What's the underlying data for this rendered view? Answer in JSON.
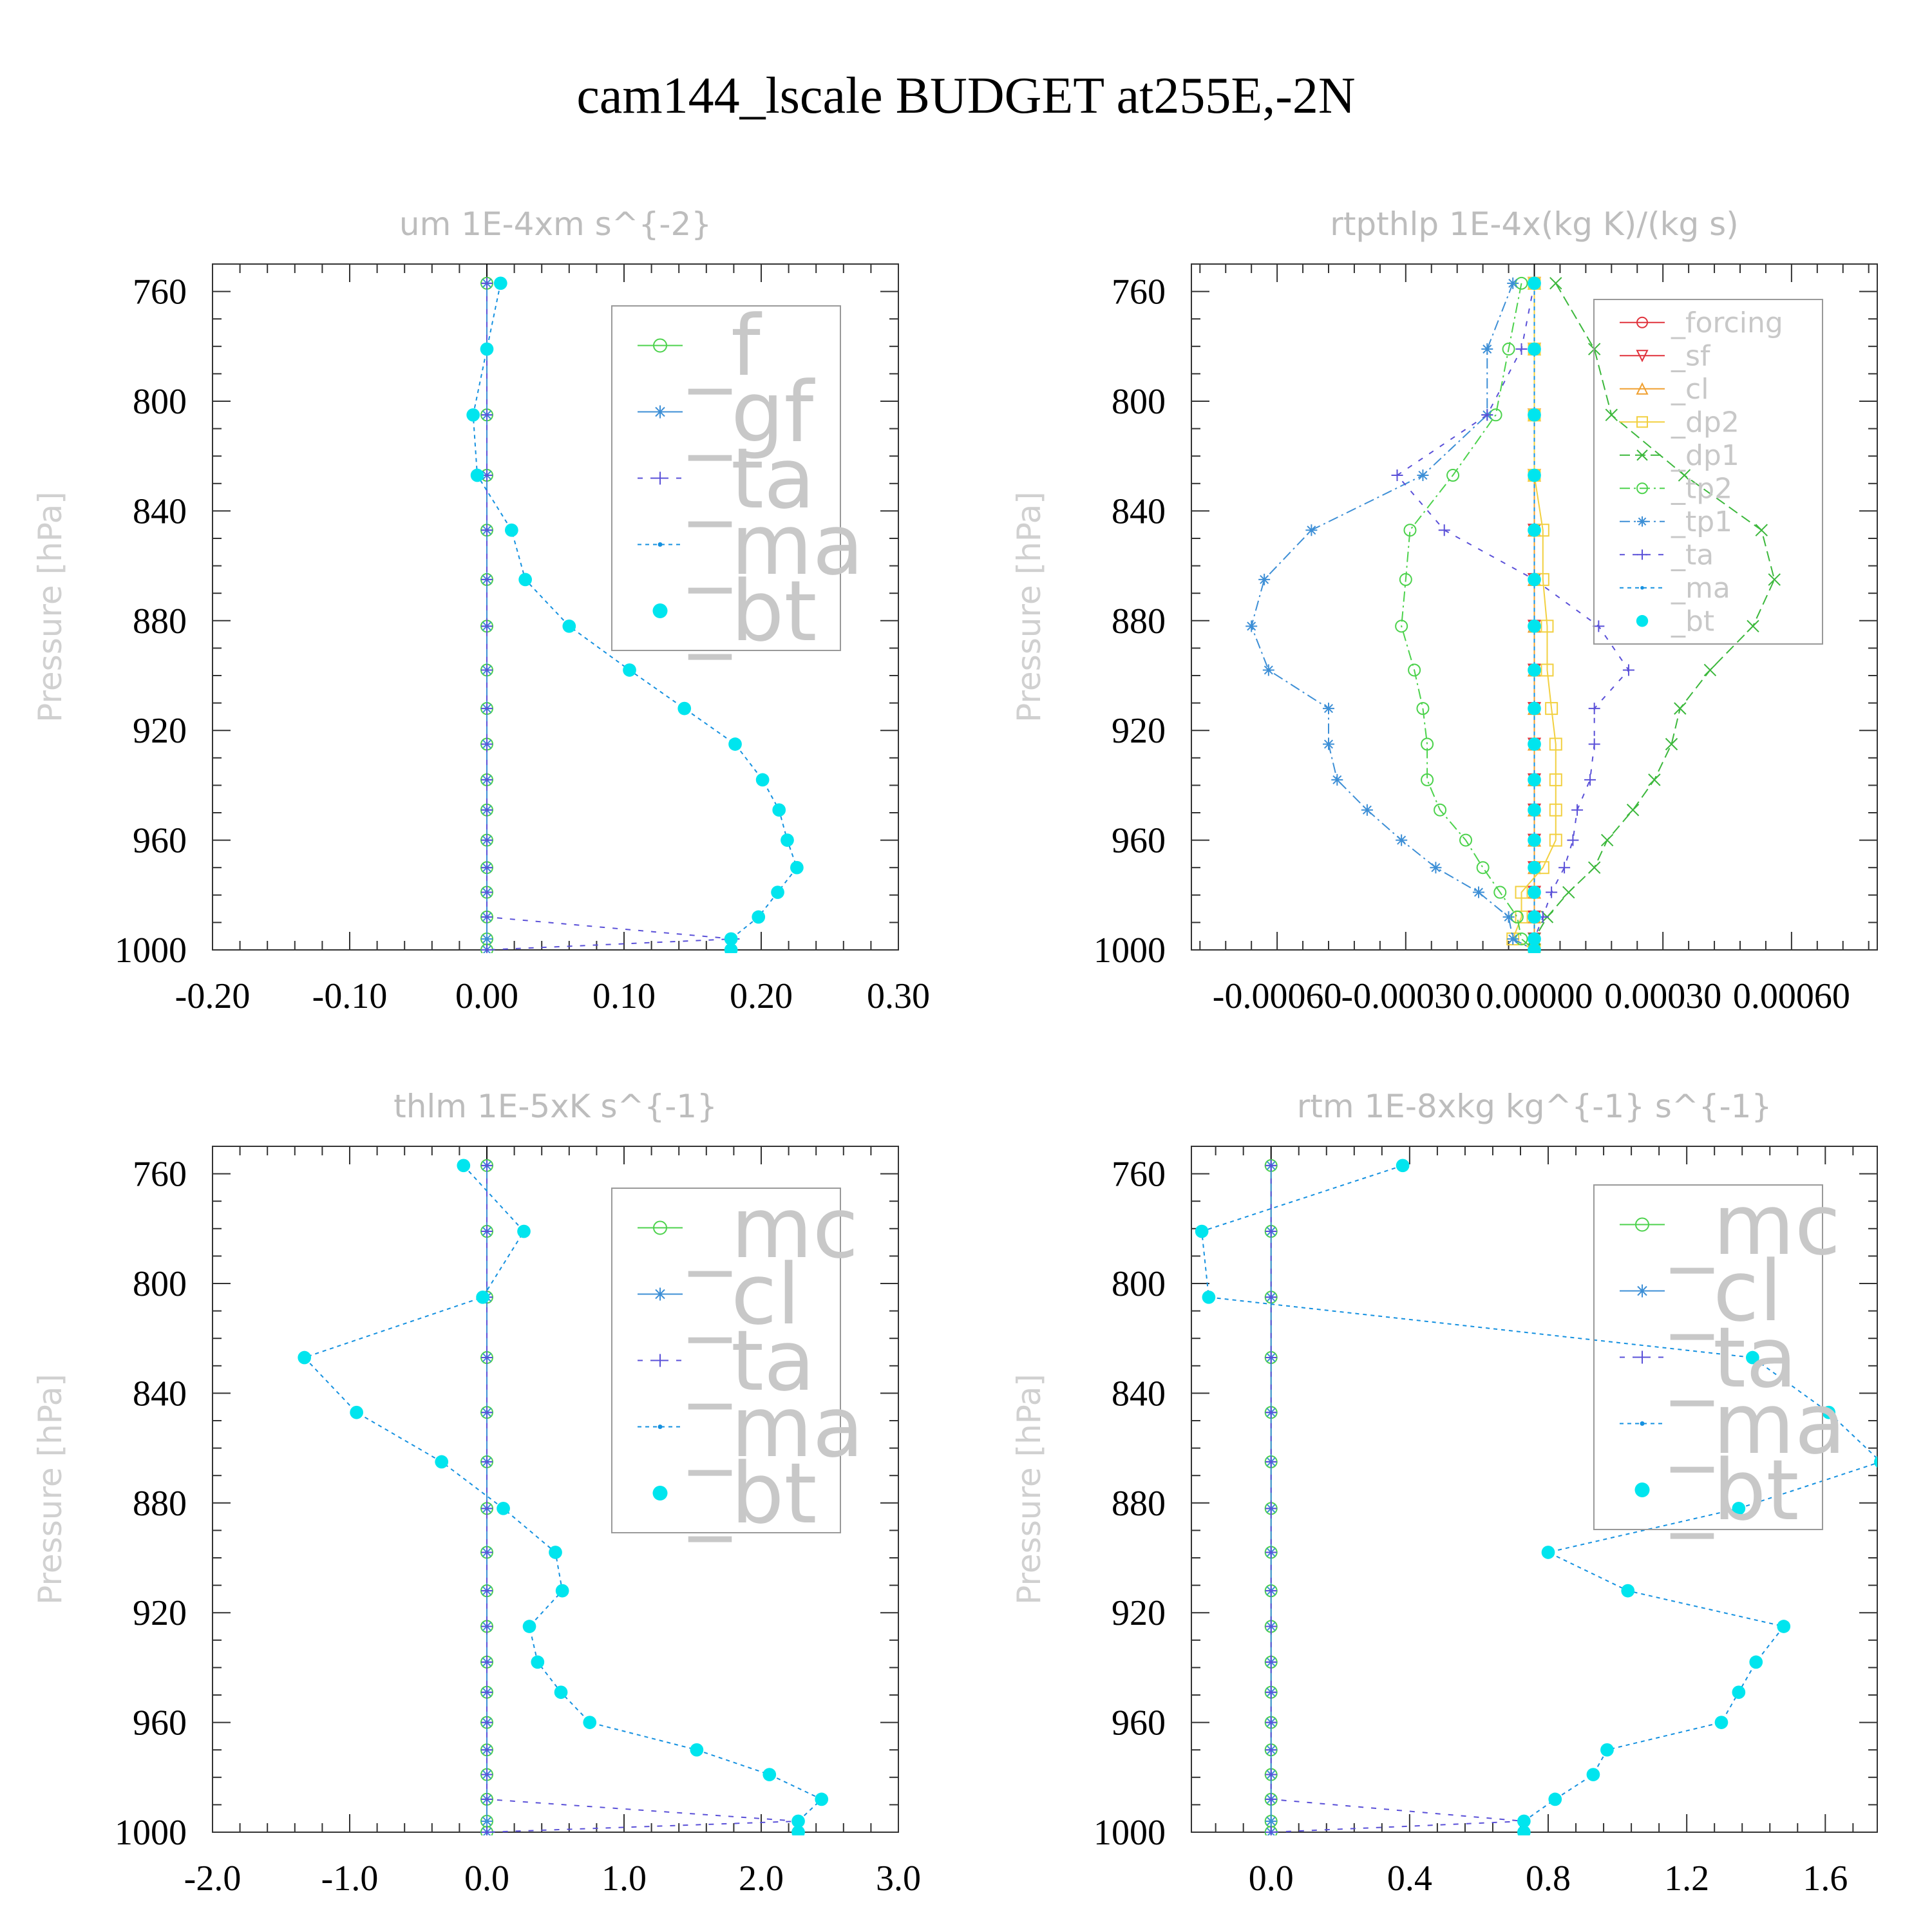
{
  "figure": {
    "title": "cam144_lscale  BUDGET at255E,-2N"
  },
  "colors": {
    "f": "#4cd24c",
    "mc": "#4cd24c",
    "tp2": "#4cd24c",
    "gf": "#3d8fd6",
    "cl_main": "#3d8fd6",
    "tp1": "#3d8fd6",
    "ta": "#5a50d8",
    "ma": "#1591e0",
    "bt": "#00e5ee",
    "forcing": "#e0323c",
    "sf": "#e0323c",
    "cl_orange": "#f0a030",
    "dp2": "#f2d040",
    "dp1": "#3cb83c"
  },
  "chart_data": [
    {
      "type": "line",
      "title": "um  1E-4xm s^{-2}",
      "ylabel": "Pressure [hPa]",
      "xlim": [
        -0.2,
        0.3
      ],
      "ylim": [
        1000,
        750
      ],
      "xticks": [
        "-0.20",
        "-0.10",
        "0.00",
        "0.10",
        "0.20",
        "0.30"
      ],
      "yticks": [
        "760",
        "800",
        "840",
        "880",
        "920",
        "960",
        "1000"
      ],
      "pressure": [
        757,
        781,
        805,
        827,
        847,
        865,
        882,
        898,
        912,
        925,
        938,
        949,
        960,
        970,
        979,
        988,
        996,
        1000
      ],
      "legend_font": 130,
      "series": [
        {
          "name": "_f",
          "color_key": "f",
          "marker": "circle",
          "dash": "",
          "values": [
            0,
            0,
            0,
            0,
            0,
            0,
            0,
            0,
            0,
            0,
            0,
            0,
            0,
            0,
            0,
            0,
            0,
            0
          ]
        },
        {
          "name": "_gf",
          "color_key": "gf",
          "marker": "star",
          "dash": "",
          "values": [
            0,
            0,
            0,
            0,
            0,
            0,
            0,
            0,
            0,
            0,
            0,
            0,
            0,
            0,
            0,
            0,
            0,
            0
          ]
        },
        {
          "name": "_ta",
          "color_key": "ta",
          "marker": "plus",
          "dash": "8 12",
          "values": [
            0,
            0,
            0,
            0,
            0,
            0,
            0,
            0,
            0,
            0,
            0,
            0,
            0,
            0,
            0,
            0,
            0.18,
            0
          ]
        },
        {
          "name": "_ma",
          "color_key": "ma",
          "marker": "dot",
          "dash": "6 6",
          "values": [
            0.01,
            0,
            -0.01,
            -0.007,
            0.018,
            0.028,
            0.06,
            0.104,
            0.144,
            0.181,
            0.201,
            0.213,
            0.219,
            0.226,
            0.212,
            0.198,
            0.178,
            0.178
          ]
        },
        {
          "name": "_bt",
          "color_key": "bt",
          "marker": "filled",
          "dash": "none",
          "values": [
            0.01,
            0,
            -0.01,
            -0.007,
            0.018,
            0.028,
            0.06,
            0.104,
            0.144,
            0.181,
            0.201,
            0.213,
            0.219,
            0.226,
            0.212,
            0.198,
            0.178,
            0.178
          ]
        }
      ]
    },
    {
      "type": "line",
      "title": "rtpthlp  1E-4x(kg K)/(kg s)",
      "ylabel": "Pressure [hPa]",
      "xlim": [
        -0.0008,
        0.0008
      ],
      "ylim": [
        1000,
        750
      ],
      "xticks": [
        "-0.00060",
        "-0.00030",
        "0.00000",
        "0.00030",
        "0.00060"
      ],
      "yticks": [
        "760",
        "800",
        "840",
        "880",
        "920",
        "960",
        "1000"
      ],
      "pressure": [
        757,
        781,
        805,
        827,
        847,
        865,
        882,
        898,
        912,
        925,
        938,
        949,
        960,
        970,
        979,
        988,
        996,
        1000
      ],
      "legend_font": 44,
      "series": [
        {
          "name": "_forcing",
          "color_key": "forcing",
          "marker": "circle",
          "dash": "",
          "values": [
            0,
            0,
            0,
            0,
            0,
            0,
            0,
            0,
            0,
            0,
            0,
            0,
            0,
            0,
            0,
            0,
            0,
            0
          ]
        },
        {
          "name": "_sf",
          "color_key": "sf",
          "marker": "tridown",
          "dash": "",
          "values": [
            0,
            0,
            0,
            0,
            0,
            0,
            0,
            0,
            0,
            0,
            0,
            0,
            0,
            0,
            0,
            0,
            0,
            0
          ]
        },
        {
          "name": "_cl",
          "color_key": "cl_orange",
          "marker": "triup",
          "dash": "",
          "values": [
            0,
            0,
            0,
            0,
            0,
            0,
            0,
            0,
            0,
            0,
            0,
            0,
            0,
            0,
            0,
            0,
            0,
            0
          ]
        },
        {
          "name": "_dp2",
          "color_key": "dp2",
          "marker": "square",
          "dash": "",
          "values": [
            0,
            0,
            0,
            0,
            2e-05,
            2e-05,
            3e-05,
            3e-05,
            4e-05,
            5e-05,
            5e-05,
            5e-05,
            5e-05,
            2e-05,
            -3e-05,
            -3e-05,
            -5e-05,
            0
          ]
        },
        {
          "name": "_dp1",
          "color_key": "dp1",
          "marker": "x",
          "dash": "16 8",
          "values": [
            5e-05,
            0.00014,
            0.00018,
            0.00035,
            0.00053,
            0.00056,
            0.00051,
            0.00041,
            0.00034,
            0.00032,
            0.00028,
            0.00023,
            0.00017,
            0.00014,
            8e-05,
            3e-05,
            0,
            0
          ]
        },
        {
          "name": "_tp2",
          "color_key": "tp2",
          "marker": "circle",
          "dash": "16 6 3 6",
          "values": [
            -3e-05,
            -6e-05,
            -9e-05,
            -0.00019,
            -0.00029,
            -0.0003,
            -0.00031,
            -0.00028,
            -0.00026,
            -0.00025,
            -0.00025,
            -0.00022,
            -0.00016,
            -0.00012,
            -8e-05,
            -4e-05,
            -3e-05,
            0
          ]
        },
        {
          "name": "_tp1",
          "color_key": "tp1",
          "marker": "star",
          "dash": "16 6 3 6",
          "values": [
            -5e-05,
            -0.00011,
            -0.00011,
            -0.00026,
            -0.00052,
            -0.00063,
            -0.00066,
            -0.00062,
            -0.00048,
            -0.00048,
            -0.00046,
            -0.00039,
            -0.00031,
            -0.00023,
            -0.00013,
            -6e-05,
            -5e-05,
            0
          ]
        },
        {
          "name": "_ta",
          "color_key": "ta",
          "marker": "plus",
          "dash": "8 12",
          "values": [
            0,
            -3e-05,
            -0.00011,
            -0.00032,
            -0.00021,
            0,
            0.00015,
            0.00022,
            0.00014,
            0.00014,
            0.00013,
            0.0001,
            9e-05,
            7e-05,
            4e-05,
            2e-05,
            0,
            0
          ]
        },
        {
          "name": "_ma",
          "color_key": "ma",
          "marker": "dot",
          "dash": "6 6",
          "values": [
            0,
            0,
            0,
            0,
            0,
            0,
            0,
            0,
            0,
            0,
            0,
            0,
            0,
            0,
            0,
            0,
            0,
            0
          ]
        },
        {
          "name": "_bt",
          "color_key": "bt",
          "marker": "filled",
          "dash": "none",
          "values": [
            0,
            0,
            0,
            0,
            0,
            0,
            0,
            0,
            0,
            0,
            0,
            0,
            0,
            0,
            0,
            0,
            0,
            0
          ]
        }
      ]
    },
    {
      "type": "line",
      "title": "thlm  1E-5xK s^{-1}",
      "ylabel": "Pressure [hPa]",
      "xlim": [
        -2,
        3
      ],
      "ylim": [
        1000,
        750
      ],
      "xticks": [
        "-2.0",
        "-1.0",
        "0.0",
        "1.0",
        "2.0",
        "3.0"
      ],
      "yticks": [
        "760",
        "800",
        "840",
        "880",
        "920",
        "960",
        "1000"
      ],
      "pressure": [
        757,
        781,
        805,
        827,
        847,
        865,
        882,
        898,
        912,
        925,
        938,
        949,
        960,
        970,
        979,
        988,
        996,
        1000
      ],
      "legend_font": 130,
      "series": [
        {
          "name": "_mc",
          "color_key": "mc",
          "marker": "circle",
          "dash": "",
          "values": [
            0,
            0,
            0,
            0,
            0,
            0,
            0,
            0,
            0,
            0,
            0,
            0,
            0,
            0,
            0,
            0,
            0,
            0
          ]
        },
        {
          "name": "_cl",
          "color_key": "cl_main",
          "marker": "star",
          "dash": "",
          "values": [
            0,
            0,
            0,
            0,
            0,
            0,
            0,
            0,
            0,
            0,
            0,
            0,
            0,
            0,
            0,
            0,
            0,
            0
          ]
        },
        {
          "name": "_ta",
          "color_key": "ta",
          "marker": "plus",
          "dash": "8 12",
          "values": [
            0,
            0,
            0,
            0,
            0,
            0,
            0,
            0,
            0,
            0,
            0,
            0,
            0,
            0,
            0,
            0,
            2.27,
            0
          ]
        },
        {
          "name": "_ma",
          "color_key": "ma",
          "marker": "dot",
          "dash": "6 6",
          "values": [
            -0.17,
            0.27,
            -0.03,
            -1.33,
            -0.95,
            -0.33,
            0.12,
            0.5,
            0.55,
            0.31,
            0.37,
            0.54,
            0.75,
            1.53,
            2.06,
            2.44,
            2.27,
            2.27
          ]
        },
        {
          "name": "_bt",
          "color_key": "bt",
          "marker": "filled",
          "dash": "none",
          "values": [
            -0.17,
            0.27,
            -0.03,
            -1.33,
            -0.95,
            -0.33,
            0.12,
            0.5,
            0.55,
            0.31,
            0.37,
            0.54,
            0.75,
            1.53,
            2.06,
            2.44,
            2.27,
            2.27
          ]
        }
      ]
    },
    {
      "type": "line",
      "title": "rtm  1E-8xkg kg^{-1} s^{-1}",
      "ylabel": "Pressure [hPa]",
      "xlim": [
        -0.23,
        1.75
      ],
      "ylim": [
        1000,
        750
      ],
      "xticks": [
        "0.0",
        "0.4",
        "0.8",
        "1.2",
        "1.6"
      ],
      "xtick_values": [
        0,
        0.4,
        0.8,
        1.2,
        1.6
      ],
      "yticks": [
        "760",
        "800",
        "840",
        "880",
        "920",
        "960",
        "1000"
      ],
      "pressure": [
        757,
        781,
        805,
        827,
        847,
        865,
        882,
        898,
        912,
        925,
        938,
        949,
        960,
        970,
        979,
        988,
        996,
        1000
      ],
      "legend_font": 130,
      "series": [
        {
          "name": "_mc",
          "color_key": "mc",
          "marker": "circle",
          "dash": "",
          "values": [
            0,
            0,
            0,
            0,
            0,
            0,
            0,
            0,
            0,
            0,
            0,
            0,
            0,
            0,
            0,
            0,
            0,
            0
          ]
        },
        {
          "name": "_cl",
          "color_key": "cl_main",
          "marker": "star",
          "dash": "",
          "values": [
            0,
            0,
            0,
            0,
            0,
            0,
            0,
            0,
            0,
            0,
            0,
            0,
            0,
            0,
            0,
            0,
            0,
            0
          ]
        },
        {
          "name": "_ta",
          "color_key": "ta",
          "marker": "plus",
          "dash": "8 12",
          "values": [
            0,
            0,
            0,
            0,
            0,
            0,
            0,
            0,
            0,
            0,
            0,
            0,
            0,
            0,
            0,
            0,
            0.73,
            0
          ]
        },
        {
          "name": "_ma",
          "color_key": "ma",
          "marker": "dot",
          "dash": "6 6",
          "values": [
            0.38,
            -0.2,
            -0.18,
            1.39,
            1.61,
            1.76,
            1.35,
            0.8,
            1.03,
            1.48,
            1.4,
            1.35,
            1.3,
            0.97,
            0.93,
            0.82,
            0.73,
            0.73
          ]
        },
        {
          "name": "_bt",
          "color_key": "bt",
          "marker": "filled",
          "dash": "none",
          "values": [
            0.38,
            -0.2,
            -0.18,
            1.39,
            1.61,
            1.76,
            1.35,
            0.8,
            1.03,
            1.48,
            1.4,
            1.35,
            1.3,
            0.97,
            0.93,
            0.82,
            0.73,
            0.73
          ]
        }
      ]
    }
  ]
}
